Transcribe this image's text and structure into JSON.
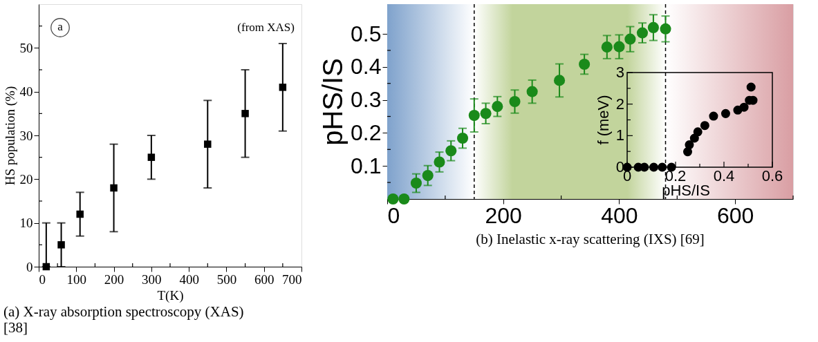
{
  "chart_data": [
    {
      "type": "scatter",
      "title": "(a) X-ray absorption spectroscopy (XAS) [38]",
      "xlabel": "T(K)",
      "ylabel": "HS population (%)",
      "annotations": [
        "a",
        "(from XAS)"
      ],
      "x": [
        20,
        60,
        110,
        200,
        300,
        450,
        550,
        650
      ],
      "values": [
        0,
        5,
        12,
        18,
        25,
        28,
        35,
        41
      ],
      "errors": [
        [
          0,
          10
        ],
        [
          0,
          10
        ],
        [
          7,
          17
        ],
        [
          8,
          28
        ],
        [
          20,
          30
        ],
        [
          18,
          38
        ],
        [
          25,
          45
        ],
        [
          31,
          51
        ]
      ],
      "color": "#000000",
      "marker": "square",
      "xlim": [
        0,
        700
      ],
      "ylim": [
        0,
        60
      ],
      "xticks": [
        0,
        {
          "value": 50,
          "label": null
        },
        100,
        {
          "value": 150,
          "label": null
        },
        200,
        {
          "value": 250,
          "label": null
        },
        300,
        {
          "value": 350,
          "label": null
        },
        400,
        {
          "value": 450,
          "label": null
        },
        500,
        {
          "value": 550,
          "label": null
        },
        600,
        {
          "value": 650,
          "label": null
        },
        700
      ],
      "yticks": [
        0,
        {
          "value": 5,
          "label": null
        },
        10,
        {
          "value": 15,
          "label": null
        },
        20,
        {
          "value": 25,
          "label": null
        },
        30,
        {
          "value": 35,
          "label": null
        },
        40,
        {
          "value": 45,
          "label": null
        },
        50,
        {
          "value": 55,
          "label": null
        }
      ]
    },
    {
      "type": "scatter",
      "title": "(b) Inelastic x-ray scattering (IXS) [69]",
      "ylabel": "pHS/IS",
      "x": [
        10,
        29,
        50,
        70,
        90,
        110,
        130,
        150,
        170,
        190,
        220,
        250,
        297,
        340,
        379,
        400,
        419,
        440,
        459,
        480
      ],
      "values": [
        0,
        0,
        0.048,
        0.071,
        0.112,
        0.146,
        0.184,
        0.253,
        0.259,
        0.28,
        0.295,
        0.325,
        0.359,
        0.408,
        0.46,
        0.461,
        0.484,
        0.503,
        0.519,
        0.515
      ],
      "errors": [
        null,
        null,
        0.028,
        0.03,
        0.03,
        0.03,
        0.03,
        0.05,
        0.031,
        0.03,
        0.035,
        0.035,
        0.05,
        0.03,
        0.035,
        0.036,
        0.038,
        0.03,
        0.039,
        0.039
      ],
      "color": "#1a8a1a",
      "marker": "circle",
      "xlim": [
        0,
        700
      ],
      "ylim": [
        0,
        0.59
      ],
      "xticks": [
        0,
        {
          "value": 100,
          "label": null
        },
        200,
        {
          "value": 300,
          "label": null
        },
        400,
        {
          "value": 500,
          "label": null
        },
        600,
        {
          "value": 700,
          "label": null
        }
      ],
      "yticks": [
        {
          "value": 0.05,
          "label": null
        },
        0.1,
        {
          "value": 0.15,
          "label": null
        },
        0.2,
        {
          "value": 0.25,
          "label": null
        },
        0.3,
        {
          "value": 0.35,
          "label": null
        },
        0.4,
        {
          "value": 0.45,
          "label": null
        },
        0.5
      ],
      "bands": [
        {
          "axis": "x",
          "from": 0,
          "to": 150,
          "color": "#7fa2cc"
        },
        {
          "axis": "x",
          "from": 150,
          "to": 480,
          "color": "#c2d49c"
        },
        {
          "axis": "x",
          "from": 480,
          "to": 700,
          "color": "#d99ea3"
        }
      ],
      "ref_lines": [
        {
          "axis": "x",
          "value": 150,
          "line_style": "dashed",
          "color": "#000000"
        },
        {
          "axis": "x",
          "value": 480,
          "line_style": "dashed",
          "color": "#000000"
        }
      ]
    },
    {
      "type": "scatter",
      "xlabel": "pHS/IS",
      "ylabel": "f (meV)",
      "x": [
        0,
        0.046,
        0.071,
        0.11,
        0.145,
        0.183,
        0.25,
        0.257,
        0.278,
        0.292,
        0.321,
        0.357,
        0.407,
        0.457,
        0.483,
        0.505,
        0.512,
        0.52
      ],
      "values": [
        0,
        0,
        0,
        0,
        0,
        0,
        0.49,
        0.71,
        0.92,
        1.12,
        1.32,
        1.62,
        1.7,
        1.81,
        1.9,
        2.12,
        2.54,
        2.12
      ],
      "color": "#000000",
      "marker": "circle",
      "xlim": [
        0,
        0.6
      ],
      "ylim": [
        0,
        3
      ],
      "xticks": [
        0,
        {
          "value": 0.1,
          "label": null
        },
        0.2,
        {
          "value": 0.3,
          "label": null
        },
        0.4,
        {
          "value": 0.5,
          "label": null
        },
        0.6
      ],
      "yticks": [
        0,
        {
          "value": 0.5,
          "label": null
        },
        1,
        {
          "value": 1.5,
          "label": null
        },
        2,
        {
          "value": 2.5,
          "label": null
        },
        3
      ]
    }
  ]
}
